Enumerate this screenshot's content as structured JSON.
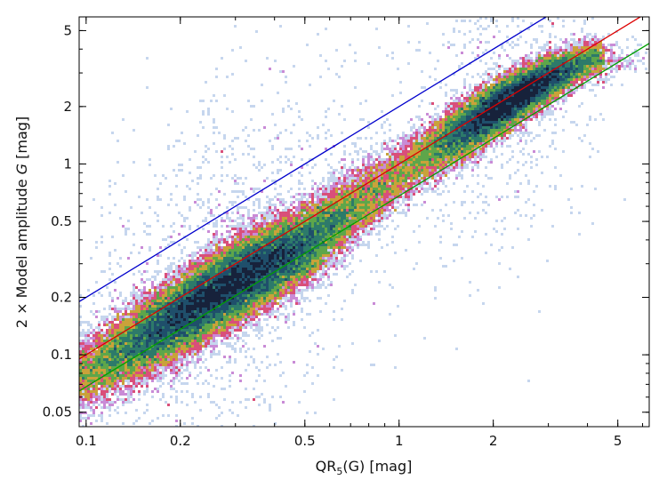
{
  "chart_data": {
    "type": "scatter",
    "title": "",
    "xlabel": {
      "prefix": "QR",
      "sub": "5",
      "suffix": "(G) [mag]"
    },
    "ylabel": {
      "prefix": "2 ×  Model amplitude ",
      "italic": "G",
      "suffix": " [mag]"
    },
    "xscale": "log",
    "yscale": "log",
    "xlim": [
      0.095,
      6.3
    ],
    "ylim": [
      0.042,
      5.9
    ],
    "xticks": [
      {
        "value": 0.1,
        "label": "0.1"
      },
      {
        "value": 0.2,
        "label": "0.2"
      },
      {
        "value": 0.5,
        "label": "0.5"
      },
      {
        "value": 1,
        "label": "1"
      },
      {
        "value": 2,
        "label": "2"
      },
      {
        "value": 5,
        "label": "5"
      }
    ],
    "yticks": [
      {
        "value": 0.05,
        "label": "0.05"
      },
      {
        "value": 0.1,
        "label": "0.1"
      },
      {
        "value": 0.2,
        "label": "0.2"
      },
      {
        "value": 0.5,
        "label": "0.5"
      },
      {
        "value": 1,
        "label": "1"
      },
      {
        "value": 2,
        "label": "2"
      },
      {
        "value": 5,
        "label": "5"
      }
    ],
    "grid": false,
    "legend": "none",
    "density": {
      "description_of_trend": "dense 2D density of points following y ≈ x, darkest near x 0.2–0.5 and x ≈ 2.2",
      "colormap": [
        "#c6d6ee",
        "#c98bd6",
        "#d94f7a",
        "#c9a23a",
        "#5ea64a",
        "#2d7a6a",
        "#1f4f6b",
        "#17223b"
      ],
      "ridge": [
        {
          "x": 0.1,
          "y": 0.08,
          "width_dex": 0.1
        },
        {
          "x": 0.2,
          "y": 0.16,
          "width_dex": 0.1
        },
        {
          "x": 0.3,
          "y": 0.24,
          "width_dex": 0.1
        },
        {
          "x": 0.5,
          "y": 0.38,
          "width_dex": 0.1
        },
        {
          "x": 0.8,
          "y": 0.68,
          "width_dex": 0.09
        },
        {
          "x": 1.2,
          "y": 1.1,
          "width_dex": 0.08
        },
        {
          "x": 2.0,
          "y": 1.9,
          "width_dex": 0.07
        },
        {
          "x": 3.0,
          "y": 2.8,
          "width_dex": 0.06
        },
        {
          "x": 4.0,
          "y": 3.5,
          "width_dex": 0.05
        }
      ]
    },
    "lines": [
      {
        "color": "#0000cc",
        "slope": 1,
        "factor": 2.0
      },
      {
        "color": "#dd0000",
        "slope": 1,
        "factor": 1.0
      },
      {
        "color": "#00a000",
        "slope": 1,
        "factor": 0.68
      }
    ]
  }
}
